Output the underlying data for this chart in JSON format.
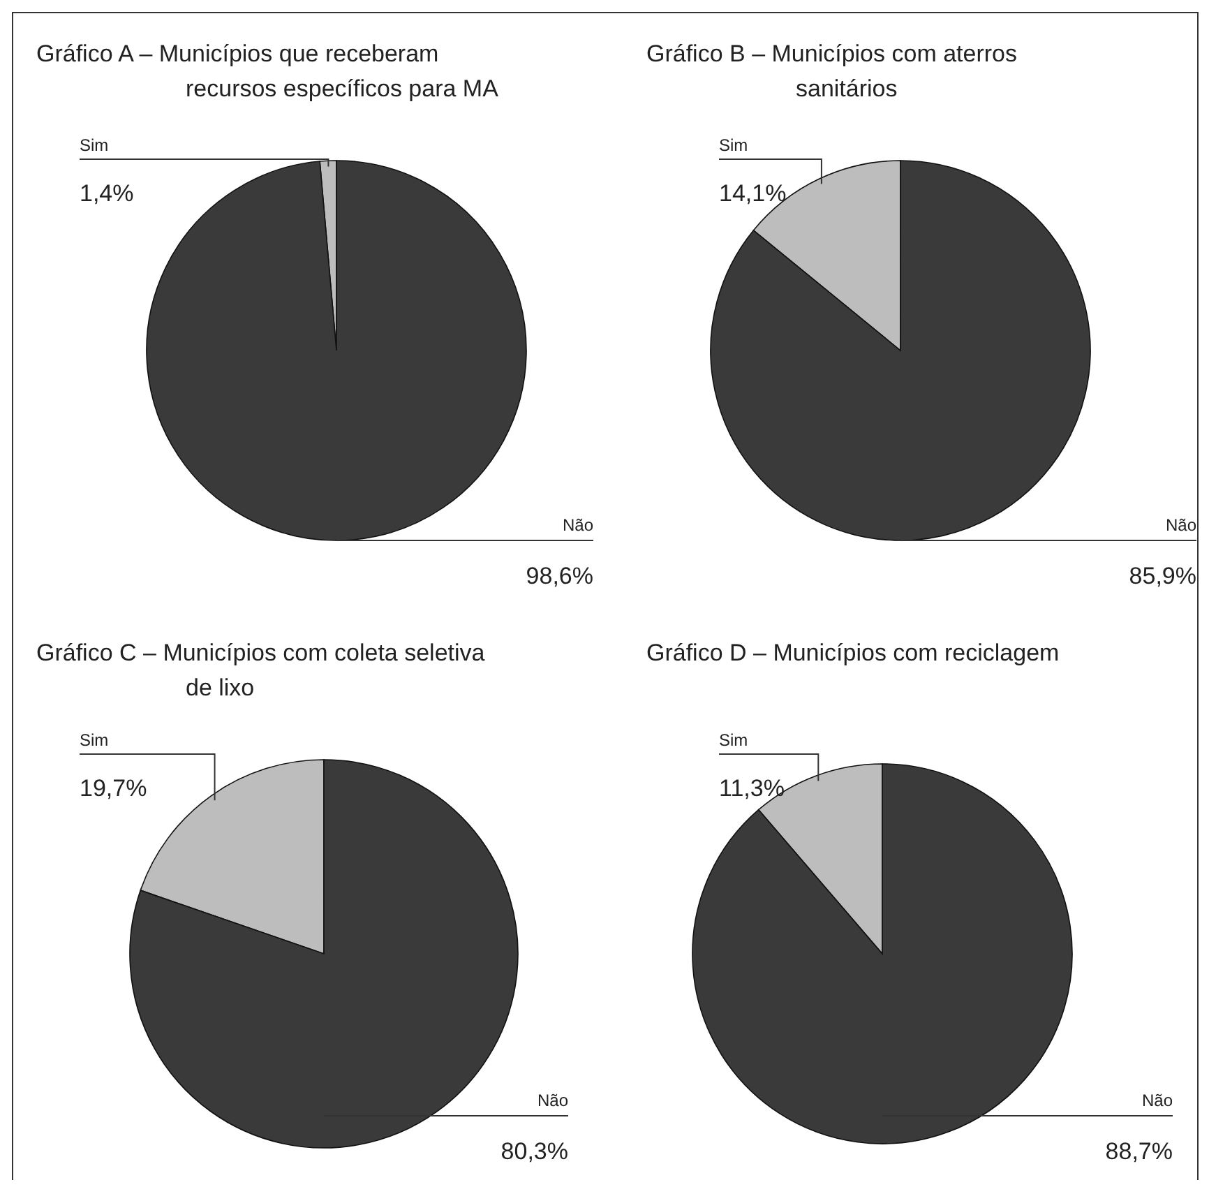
{
  "chart_data": [
    {
      "type": "pie",
      "title": "Gráfico A – Municípios que receberam\nrecursos específicos para MA",
      "categories": [
        "Sim",
        "Não"
      ],
      "values": [
        1.4,
        98.6
      ],
      "colors": [
        "#bdbdbd",
        "#3a3a3a"
      ],
      "value_labels": [
        "1,4%",
        "98,6%"
      ]
    },
    {
      "type": "pie",
      "title": "Gráfico B – Municípios com aterros\nsanitários",
      "categories": [
        "Sim",
        "Não"
      ],
      "values": [
        14.1,
        85.9
      ],
      "colors": [
        "#bdbdbd",
        "#3a3a3a"
      ],
      "value_labels": [
        "14,1%",
        "85,9%"
      ]
    },
    {
      "type": "pie",
      "title": "Gráfico C – Municípios com coleta seletiva\nde lixo",
      "categories": [
        "Sim",
        "Não"
      ],
      "values": [
        19.7,
        80.3
      ],
      "colors": [
        "#bdbdbd",
        "#3a3a3a"
      ],
      "value_labels": [
        "19,7%",
        "80,3%"
      ]
    },
    {
      "type": "pie",
      "title": "Gráfico D – Municípios com reciclagem",
      "categories": [
        "Sim",
        "Não"
      ],
      "values": [
        11.3,
        88.7
      ],
      "colors": [
        "#bdbdbd",
        "#3a3a3a"
      ],
      "value_labels": [
        "11,3%",
        "88,7%"
      ]
    }
  ]
}
